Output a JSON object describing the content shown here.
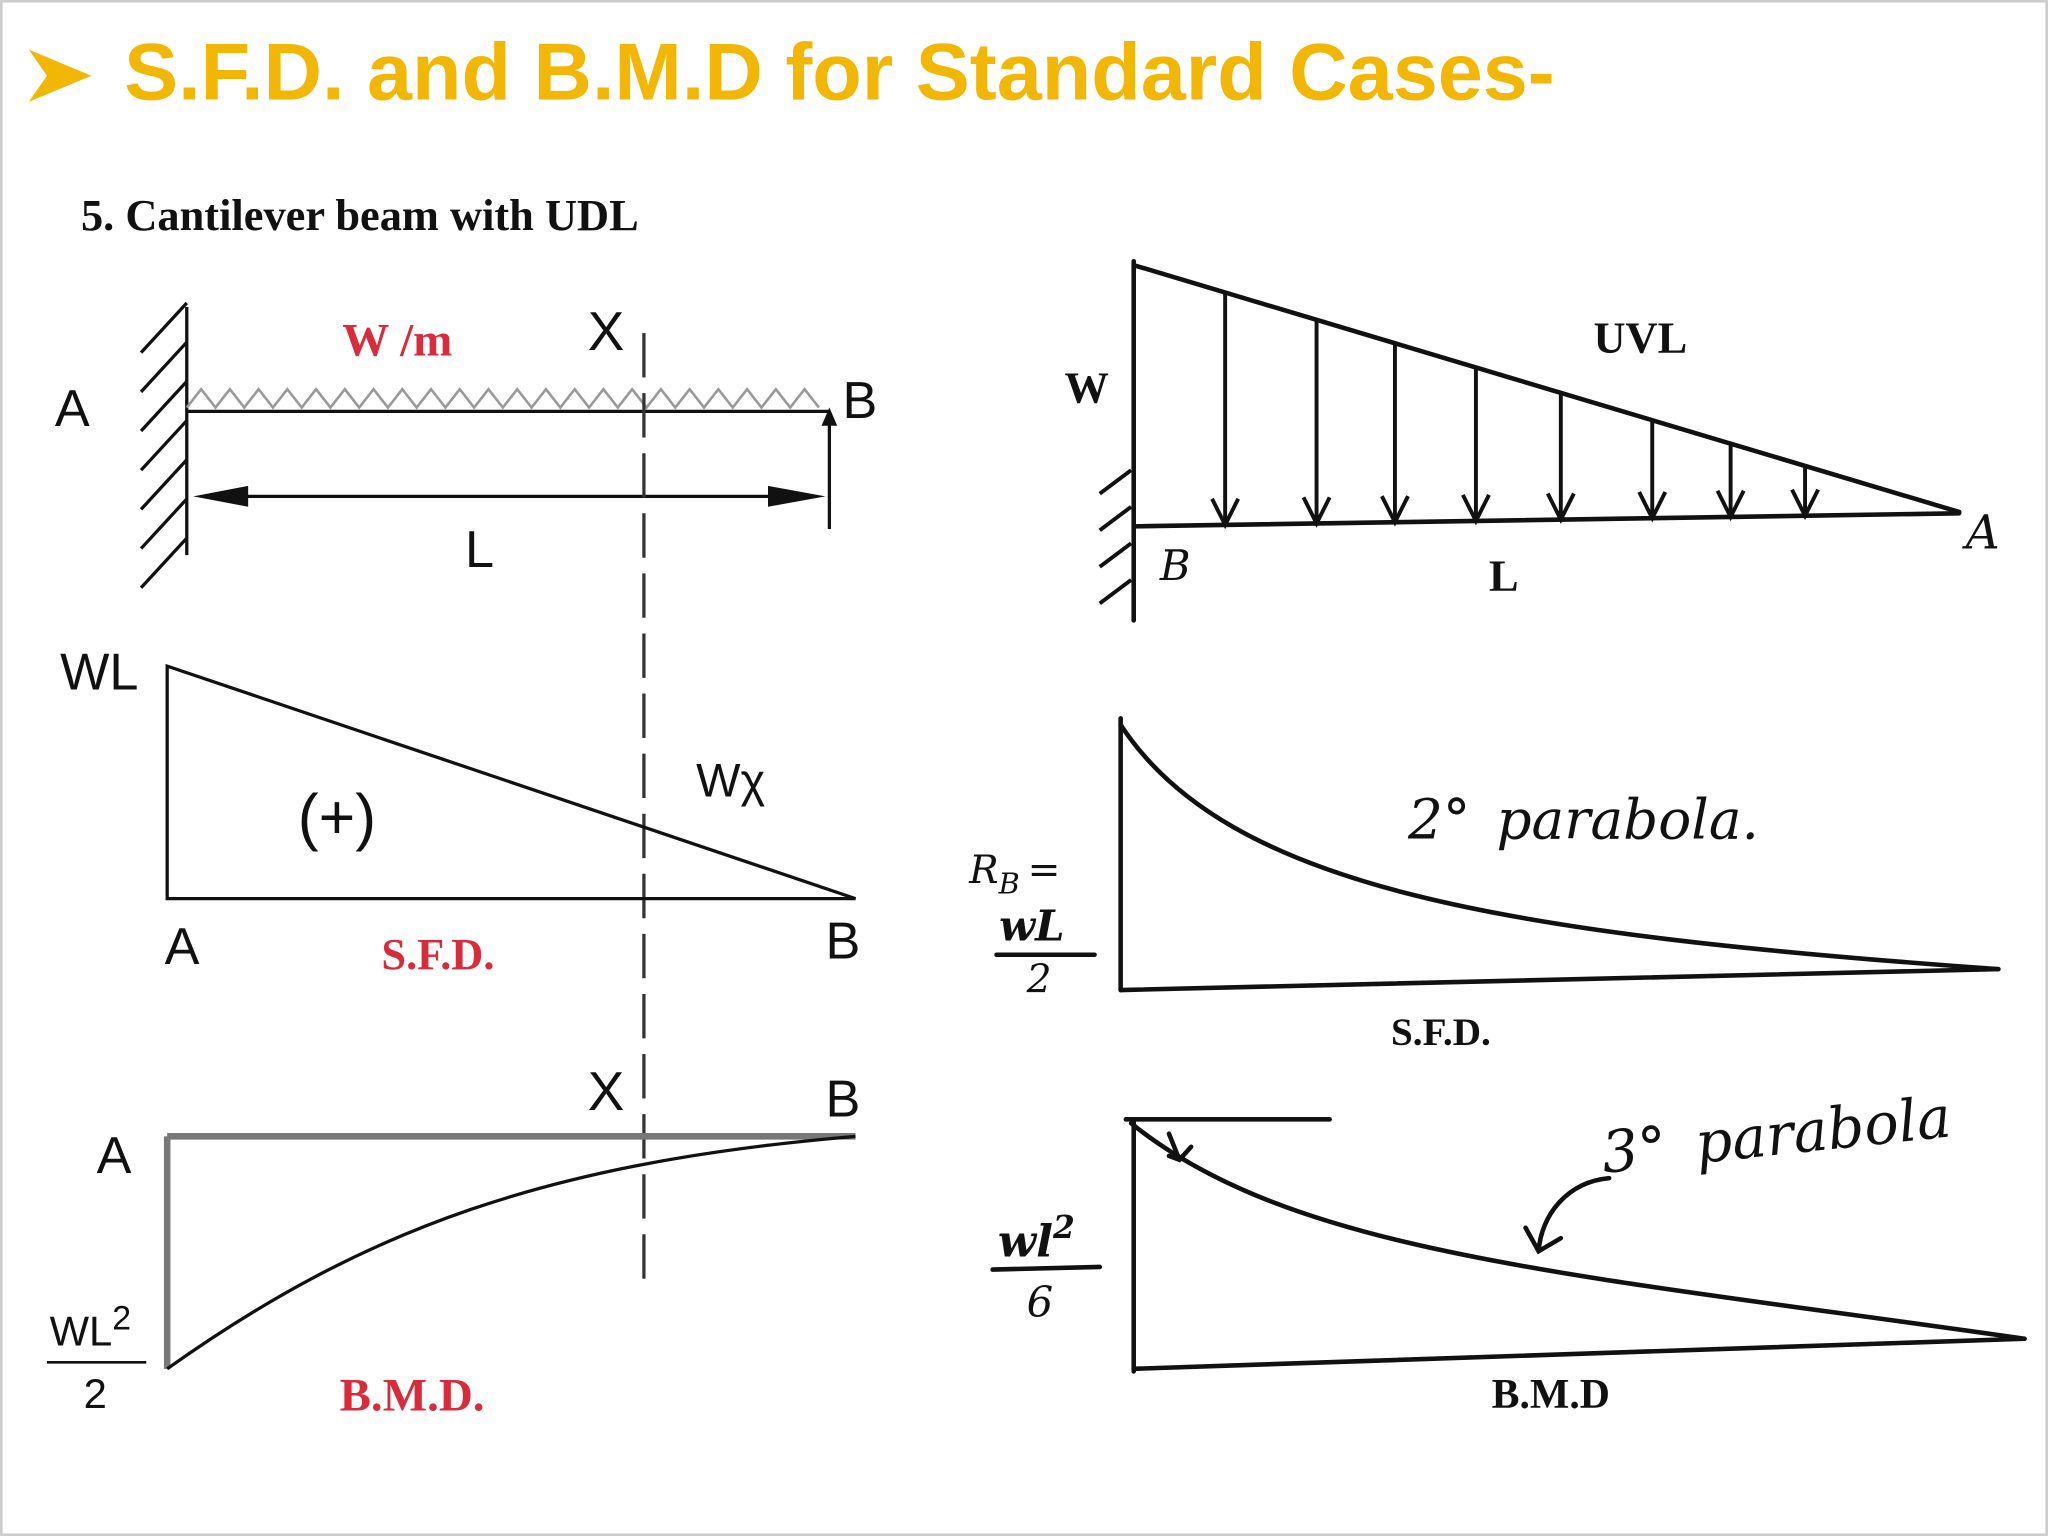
{
  "header": {
    "title": "S.F.D. and B.M.D for Standard Cases-"
  },
  "left_panel": {
    "heading": "5. Cantilever beam with UDL",
    "beam": {
      "load": "W /m",
      "section": "X",
      "support_end": "A",
      "free_end": "B",
      "span": "L"
    },
    "sfd": {
      "max": "WL",
      "sign": "(+)",
      "at_section": "Wχ",
      "left_end": "A",
      "right_end": "B",
      "caption": "S.F.D."
    },
    "bmd": {
      "section": "X",
      "right_end": "B",
      "left_end": "A",
      "max": {
        "numerator": "WL",
        "exponent": "2",
        "denominator": "2"
      },
      "caption": "B.M.D."
    }
  },
  "right_panel": {
    "beam": {
      "load_max": "W",
      "load_type": "UVL",
      "fixed_end": "B",
      "span": "L",
      "free_end": "A"
    },
    "sfd": {
      "reaction": {
        "symbol": "R",
        "subscript": "B",
        "relation": "="
      },
      "max": {
        "numerator": "wL",
        "denominator": "2"
      },
      "curve": {
        "order": "2°",
        "name": "parabola."
      },
      "caption": "S.F.D."
    },
    "bmd": {
      "max": {
        "numerator": "wl",
        "exponent": "2",
        "denominator": "6"
      },
      "curve": {
        "order": "3°",
        "name": "parabola"
      },
      "caption": "B.M.D"
    }
  }
}
